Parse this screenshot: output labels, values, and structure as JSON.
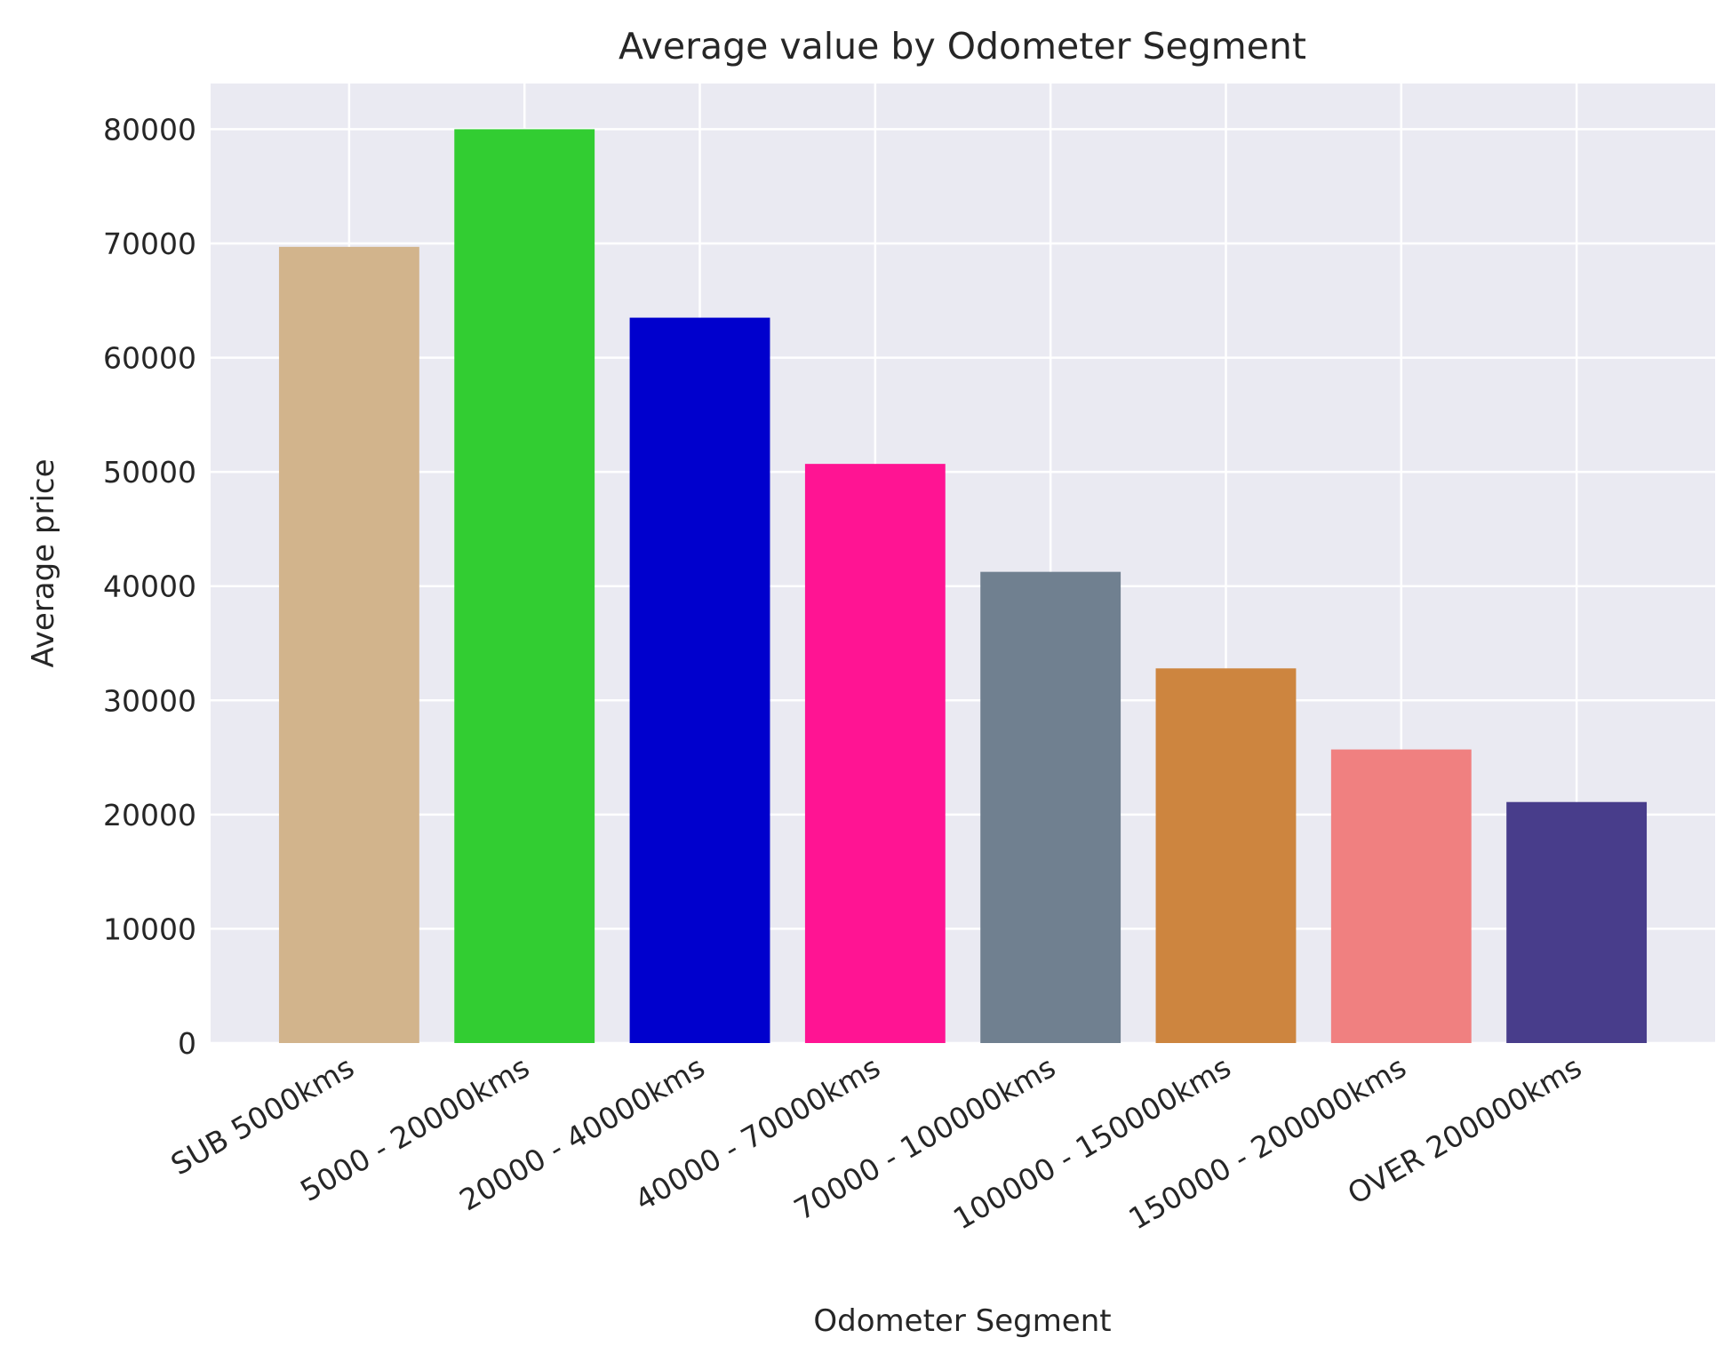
{
  "chart_data": {
    "type": "bar",
    "title": "Average value by Odometer Segment",
    "xlabel": "Odometer Segment",
    "ylabel": "Average price",
    "categories": [
      "SUB 5000kms",
      "5000 - 20000kms",
      "20000 - 40000kms",
      "40000 - 70000kms",
      "70000 - 100000kms",
      "100000 - 150000kms",
      "150000 - 200000kms",
      "OVER 200000kms"
    ],
    "values": [
      69700,
      80000,
      63500,
      50700,
      41250,
      32800,
      25700,
      21100
    ],
    "colors": [
      "#d2b48c",
      "#32cd32",
      "#0000cd",
      "#ff1493",
      "#708090",
      "#cd853f",
      "#f08080",
      "#483d8b"
    ],
    "ylim": [
      0,
      84000
    ],
    "yticks": [
      0,
      10000,
      20000,
      30000,
      40000,
      50000,
      60000,
      70000,
      80000
    ],
    "ytick_labels": [
      "0",
      "10000",
      "20000",
      "30000",
      "40000",
      "50000",
      "60000",
      "70000",
      "80000"
    ],
    "grid": true,
    "background": "#eaeaf2"
  }
}
